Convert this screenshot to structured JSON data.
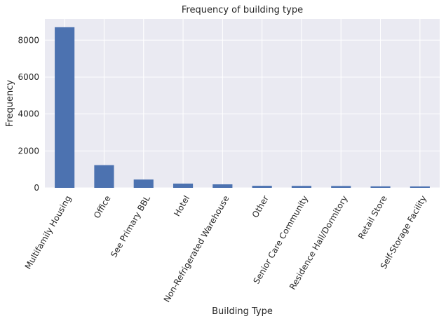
{
  "chart_data": {
    "type": "bar",
    "title": "Frequency of building type",
    "xlabel": "Building Type",
    "ylabel": "Frequency",
    "categories": [
      "Multifamily Housing",
      "Office",
      "See Primary BBL",
      "Hotel",
      "Non-Refrigerated Warehouse",
      "Other",
      "Senior Care Community",
      "Residence Hall/Dormitory",
      "Retail Store",
      "Self-Storage Facility"
    ],
    "values": [
      8700,
      1230,
      450,
      230,
      190,
      110,
      105,
      100,
      80,
      75
    ],
    "ylim": [
      0,
      9150
    ],
    "yticks": [
      0,
      2000,
      4000,
      6000,
      8000
    ],
    "grid": true,
    "legend": "none",
    "colors": {
      "bar": "#4c72b0",
      "background": "#eaeaf2",
      "grid": "#ffffff",
      "text": "#262626"
    }
  }
}
